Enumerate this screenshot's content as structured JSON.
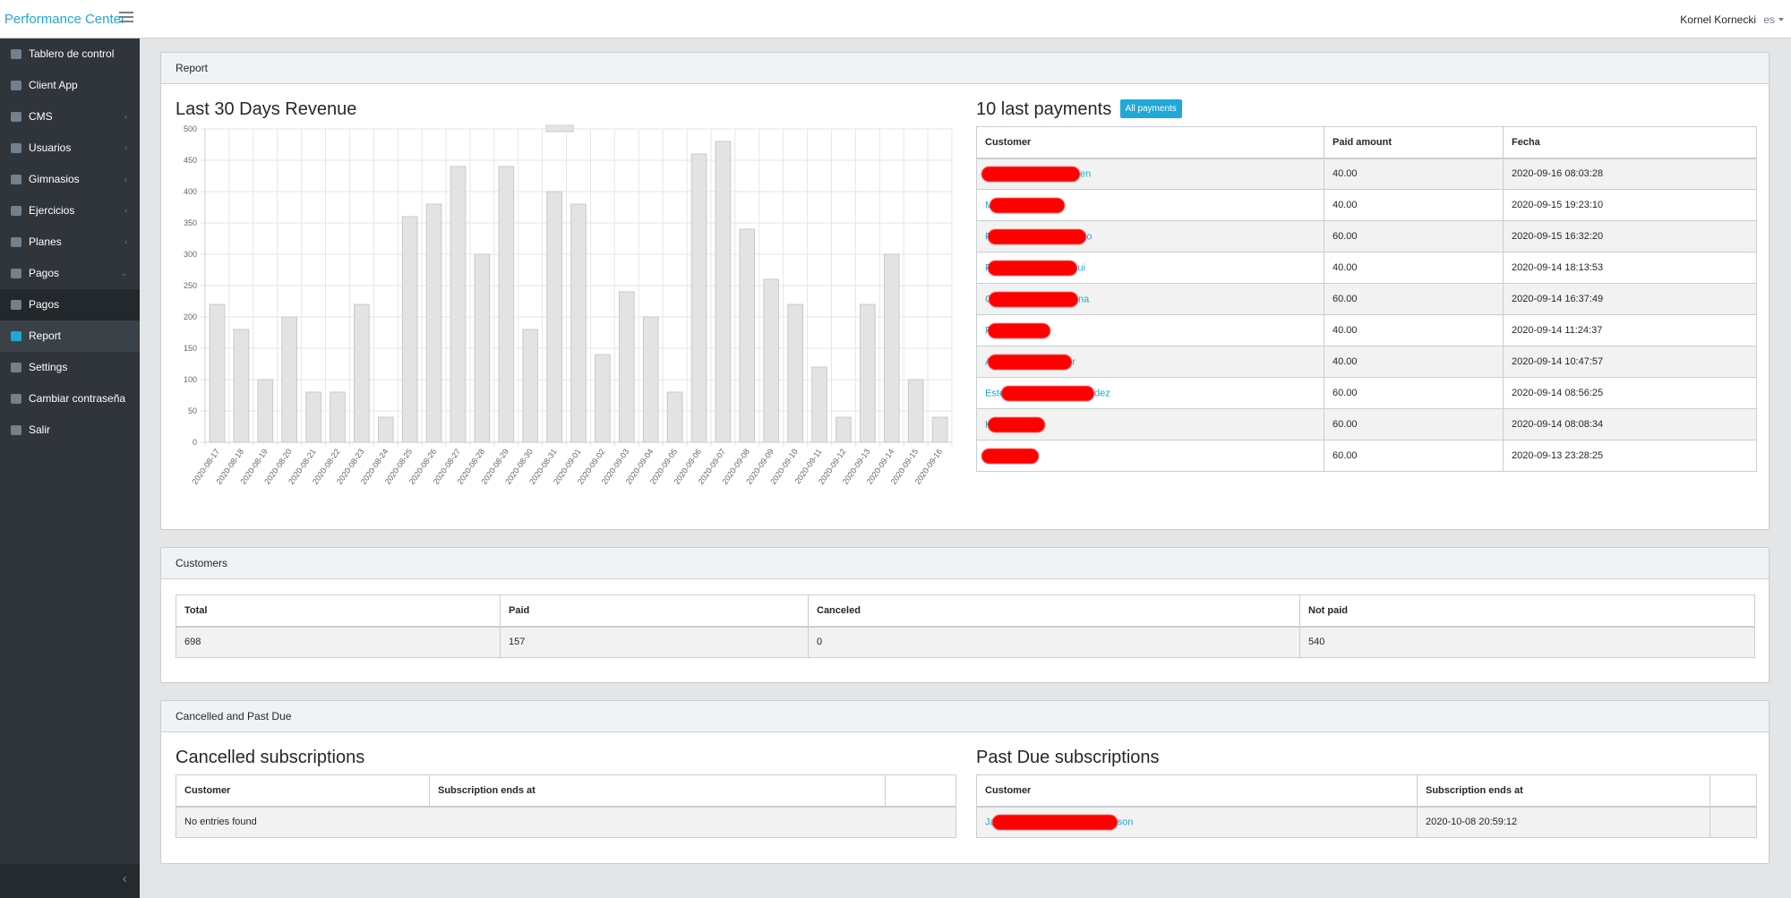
{
  "header": {
    "brand": "ers Performance Center",
    "user_name": "Kornel Kornecki",
    "lang": "es"
  },
  "sidebar": {
    "items": [
      {
        "label": "Tablero de control",
        "icon": "dashboard-icon",
        "chevron": ""
      },
      {
        "label": "Client App",
        "icon": "mobile-icon",
        "chevron": ""
      },
      {
        "label": "CMS",
        "icon": "file-icon",
        "chevron": "‹"
      },
      {
        "label": "Usuarios",
        "icon": "users-icon",
        "chevron": "‹"
      },
      {
        "label": "Gimnasios",
        "icon": "dumbbell-icon",
        "chevron": "‹"
      },
      {
        "label": "Ejercicios",
        "icon": "running-icon",
        "chevron": "‹"
      },
      {
        "label": "Planes",
        "icon": "clipboard-icon",
        "chevron": "‹"
      },
      {
        "label": "Pagos",
        "icon": "wallet-icon",
        "chevron": "⌄"
      },
      {
        "label": "Pagos",
        "icon": "credit-card-icon",
        "chevron": ""
      },
      {
        "label": "Report",
        "icon": "credit-card-icon",
        "chevron": ""
      },
      {
        "label": "Settings",
        "icon": "cogs-icon",
        "chevron": ""
      },
      {
        "label": "Cambiar contraseña",
        "icon": "key-icon",
        "chevron": ""
      },
      {
        "label": "Salir",
        "icon": "sign-out-icon",
        "chevron": ""
      }
    ],
    "toggler": "‹"
  },
  "report": {
    "header": "Report",
    "revenue_title": "Last 30 Days Revenue",
    "payments_title": "10 last payments",
    "all_payments_label": "All payments",
    "payments_columns": [
      "Customer",
      "Paid amount",
      "Fecha"
    ],
    "payments": [
      {
        "first": "",
        "last": "en",
        "amount": "40.00",
        "date": "2020-09-16 08:03:28",
        "redact_w": 110
      },
      {
        "first": "M",
        "last": "",
        "amount": "40.00",
        "date": "2020-09-15 19:23:10",
        "redact_w": 84
      },
      {
        "first": "P",
        "last": "o",
        "amount": "60.00",
        "date": "2020-09-15 16:32:20",
        "redact_w": 110
      },
      {
        "first": "P",
        "last": "ui",
        "amount": "40.00",
        "date": "2020-09-14 18:13:53",
        "redact_w": 100
      },
      {
        "first": "C",
        "last": "na",
        "amount": "60.00",
        "date": "2020-09-14 16:37:49",
        "redact_w": 100
      },
      {
        "first": "F",
        "last": "",
        "amount": "40.00",
        "date": "2020-09-14 11:24:37",
        "redact_w": 70
      },
      {
        "first": "A",
        "last": "r",
        "amount": "40.00",
        "date": "2020-09-14 10:47:57",
        "redact_w": 94
      },
      {
        "first": "Este",
        "last": "dez",
        "amount": "60.00",
        "date": "2020-09-14 08:56:25",
        "redact_w": 104
      },
      {
        "first": "K",
        "last": "",
        "amount": "60.00",
        "date": "2020-09-14 08:08:34",
        "redact_w": 64
      },
      {
        "first": "",
        "last": "",
        "amount": "60.00",
        "date": "2020-09-13 23:28:25",
        "redact_w": 64
      }
    ]
  },
  "customers": {
    "header": "Customers",
    "columns": [
      "Total",
      "Paid",
      "Canceled",
      "Not paid"
    ],
    "values": [
      "698",
      "157",
      "0",
      "540"
    ]
  },
  "cancelled_past_due": {
    "header": "Cancelled and Past Due",
    "cancelled_title": "Cancelled subscriptions",
    "cancelled_columns": [
      "Customer",
      "Subscription ends at",
      ""
    ],
    "cancelled_empty": "No entries found",
    "past_due_title": "Past Due subscriptions",
    "past_due_columns": [
      "Customer",
      "Subscription ends at",
      ""
    ],
    "past_due": [
      {
        "first": "Ja",
        "last": "son",
        "ends": "2020-10-08 20:59:12",
        "redact_w": 140
      }
    ]
  },
  "chart_data": {
    "type": "bar",
    "title": "",
    "xlabel": "",
    "ylabel": "",
    "ylim": [
      0,
      500
    ],
    "yticks": [
      0,
      50,
      100,
      150,
      200,
      250,
      300,
      350,
      400,
      450,
      500
    ],
    "grid": true,
    "legend": "top-center",
    "categories": [
      "2020-08-17",
      "2020-08-18",
      "2020-08-19",
      "2020-08-20",
      "2020-08-21",
      "2020-08-22",
      "2020-08-23",
      "2020-08-24",
      "2020-08-25",
      "2020-08-26",
      "2020-08-27",
      "2020-08-28",
      "2020-08-29",
      "2020-08-30",
      "2020-08-31",
      "2020-09-01",
      "2020-09-02",
      "2020-09-03",
      "2020-09-04",
      "2020-09-05",
      "2020-09-06",
      "2020-09-07",
      "2020-09-08",
      "2020-09-09",
      "2020-09-10",
      "2020-09-11",
      "2020-09-12",
      "2020-09-13",
      "2020-09-14",
      "2020-09-15",
      "2020-09-16"
    ],
    "values": [
      220,
      180,
      100,
      200,
      80,
      80,
      220,
      40,
      360,
      380,
      440,
      300,
      440,
      180,
      400,
      380,
      140,
      240,
      200,
      80,
      460,
      480,
      340,
      260,
      220,
      120,
      40,
      220,
      300,
      100,
      40
    ],
    "bar_fill": "#e3e3e3",
    "bar_stroke": "#c9c9c9"
  }
}
